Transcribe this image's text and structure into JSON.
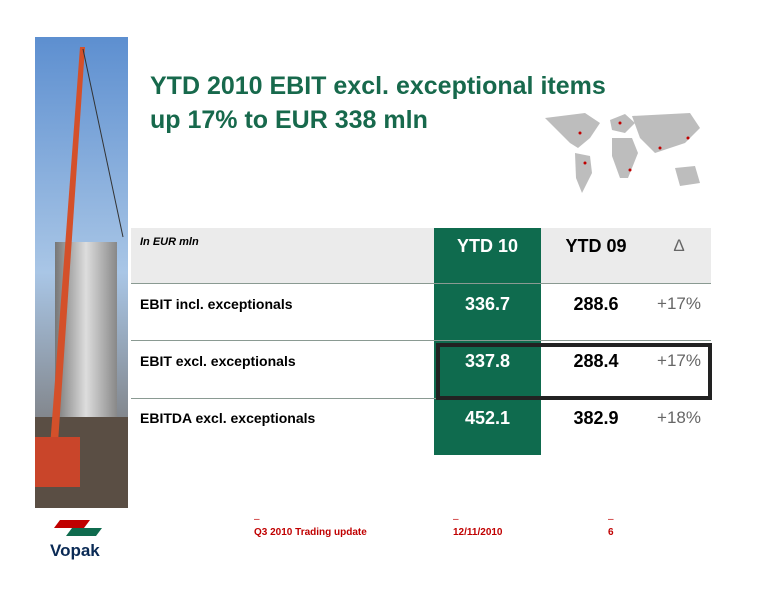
{
  "header": {
    "title_lines": [
      "YTD 2010 EBIT excl. exceptional items",
      "up 17% to EUR 338 mln"
    ]
  },
  "table": {
    "columns": [
      "In EUR mln",
      "YTD 10",
      "YTD 09",
      "Δ"
    ],
    "rows": [
      [
        "EBIT incl. exceptionals",
        "336.7",
        "288.6",
        "+17%"
      ],
      [
        "EBIT excl. exceptionals",
        "337.8",
        "288.4",
        "+17%"
      ],
      [
        "EBITDA excl. exceptionals",
        "452.1",
        "382.9",
        "+18%"
      ]
    ]
  },
  "footer": {
    "logo": "Vopak",
    "presentation": "Q3 2010 Trading update",
    "date": "12/11/2010",
    "page": "6"
  }
}
